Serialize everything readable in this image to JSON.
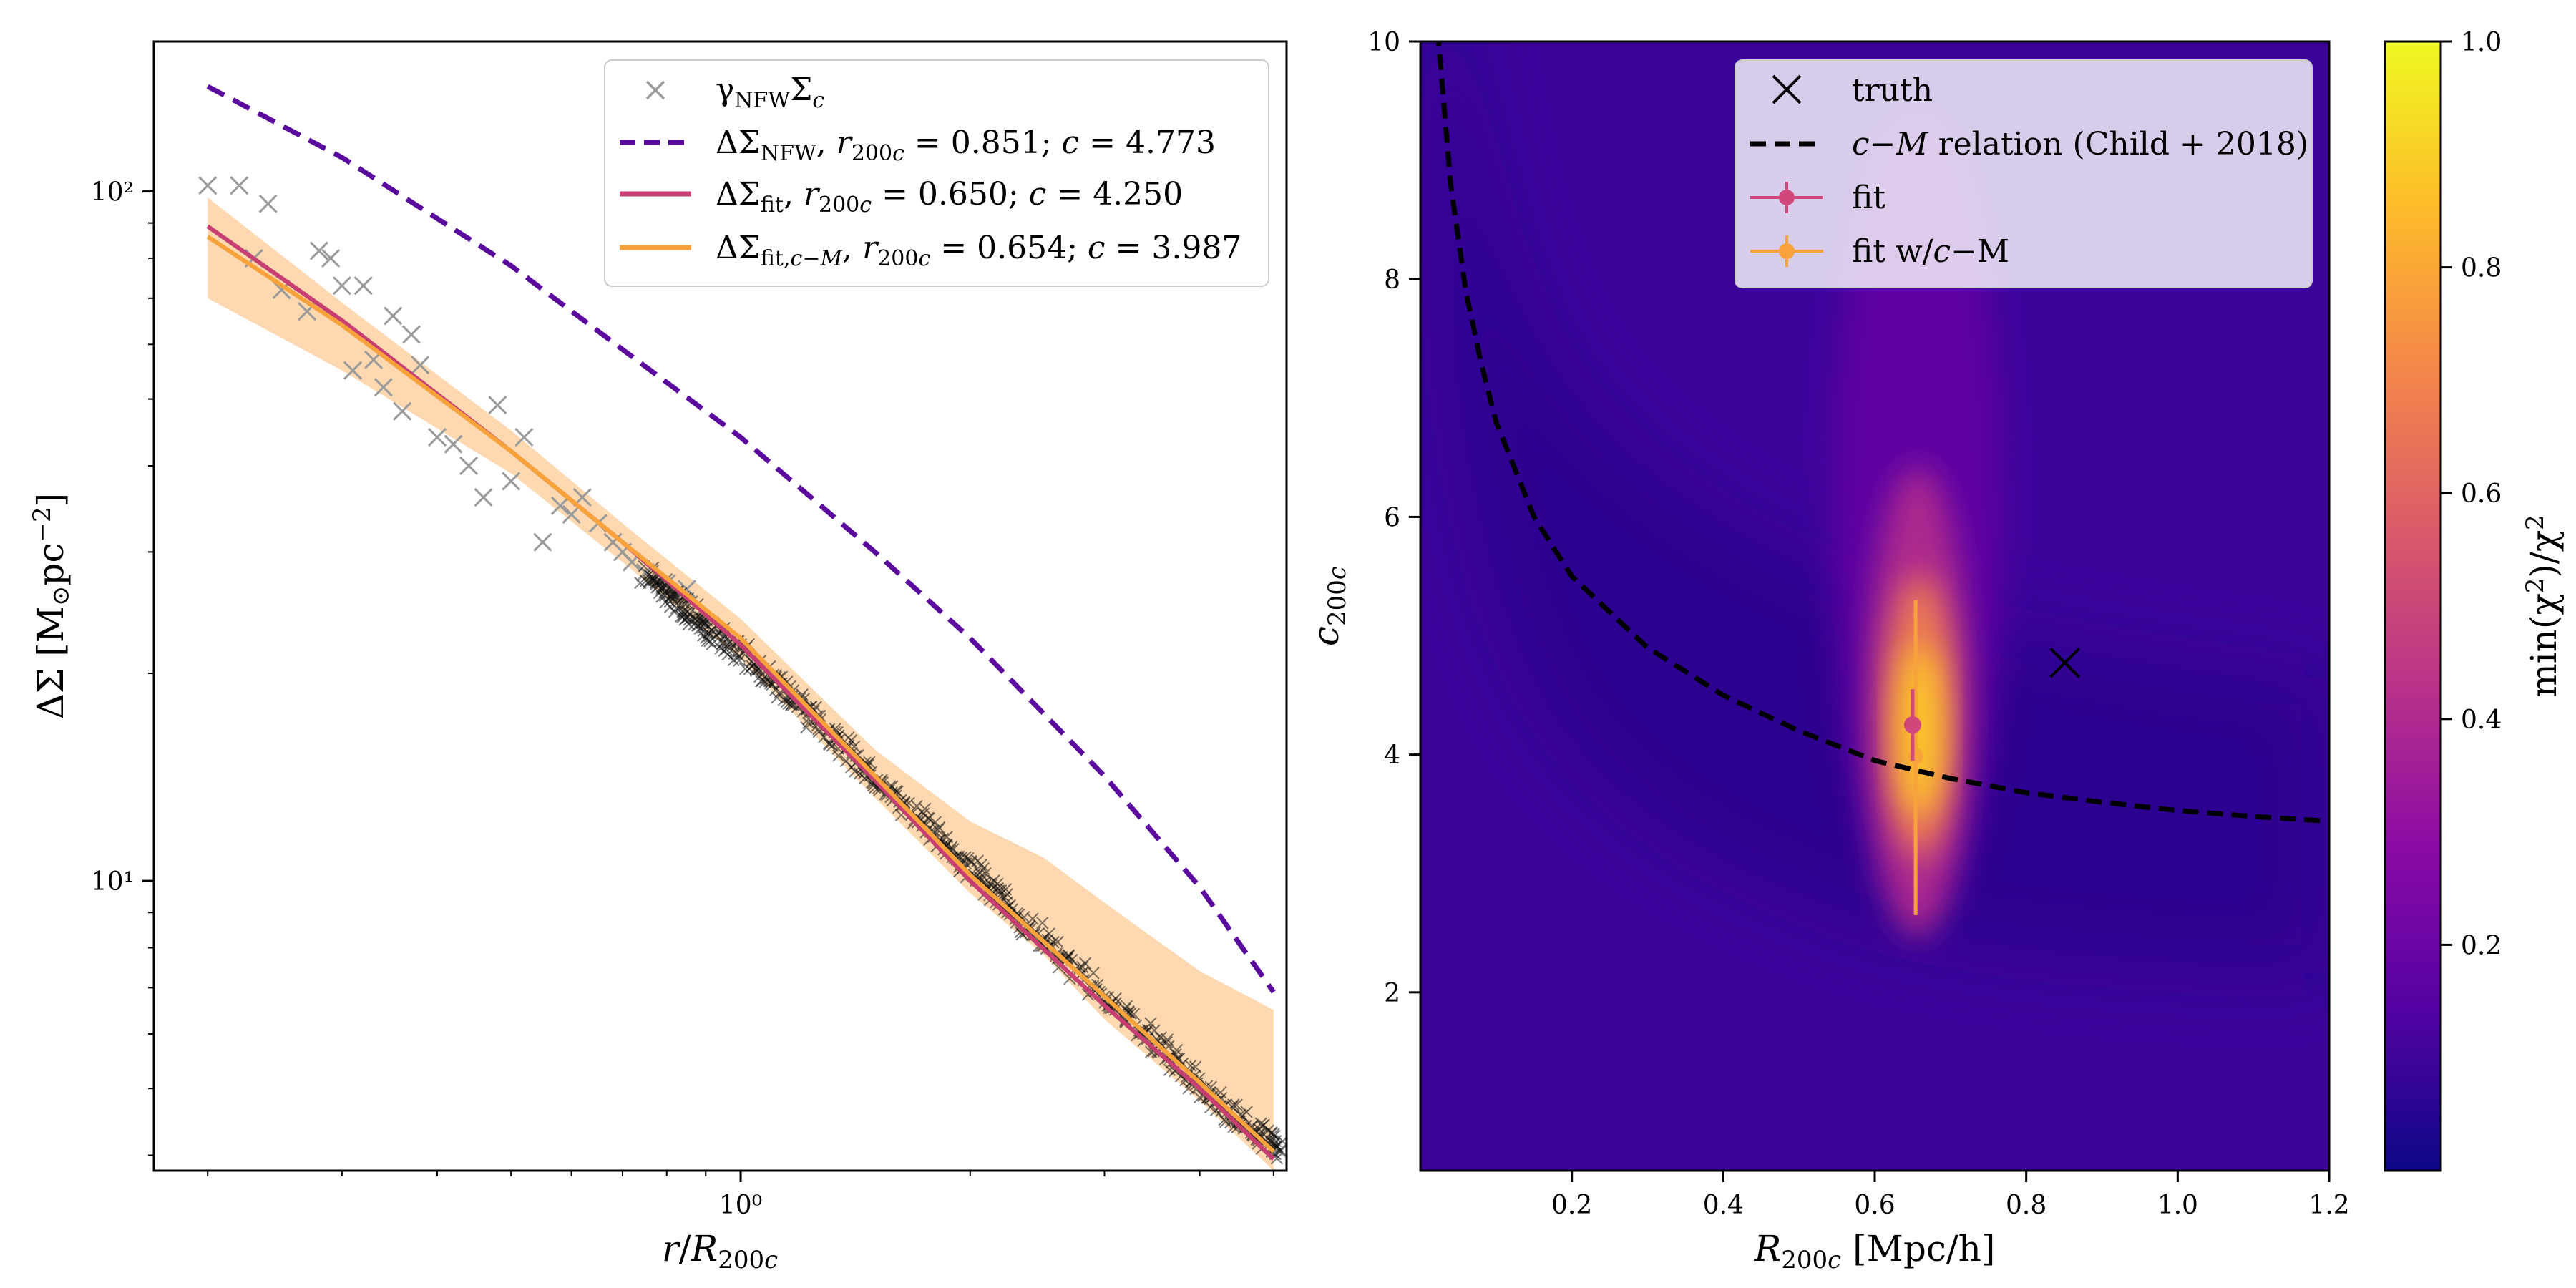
{
  "chart_data": [
    {
      "type": "line",
      "panel": "left",
      "xscale": "log",
      "yscale": "log",
      "xlabel": "r/R200c",
      "ylabel": "ΔΣ [M⊙pc⁻²]",
      "xlim": [
        0.17,
        5.2
      ],
      "ylim": [
        3.8,
        165
      ],
      "xticks": [
        {
          "value": 1,
          "label": "10⁰"
        }
      ],
      "yticks": [
        {
          "value": 10,
          "label": "10¹"
        },
        {
          "value": 100,
          "label": "10²"
        }
      ],
      "legend_position": "top-right",
      "legend": [
        {
          "label": "γNFW Σc",
          "color": "#9a9a9a",
          "marker": "x"
        },
        {
          "label": "ΔΣNFW, r200c = 0.851; c = 4.773",
          "color": "#5b0a9e",
          "style": "dashed"
        },
        {
          "label": "ΔΣfit, r200c = 0.650; c = 4.250",
          "color": "#c73e73",
          "style": "solid"
        },
        {
          "label": "ΔΣfit,c−M, r200c = 0.654; c = 3.987",
          "color": "#f7a23a",
          "style": "solid"
        }
      ],
      "series": [
        {
          "name": "ΔΣNFW, r200c = 0.851; c = 4.773",
          "color": "#5b0a9e",
          "x": [
            0.2,
            0.3,
            0.5,
            0.7,
            1.0,
            1.5,
            2.0,
            3.0,
            4.0,
            5.0
          ],
          "y": [
            142,
            112,
            78,
            59,
            44,
            30,
            22.5,
            14.2,
            9.8,
            6.9
          ]
        },
        {
          "name": "ΔΣfit, r200c = 0.650; c = 4.250",
          "color": "#c73e73",
          "x": [
            0.2,
            0.3,
            0.5,
            0.7,
            1.0,
            1.5,
            2.0,
            3.0,
            4.0,
            5.0
          ],
          "y": [
            89,
            65,
            42,
            31,
            22,
            14,
            10,
            6.6,
            5.0,
            3.95
          ]
        },
        {
          "name": "ΔΣfit,c−M, r200c = 0.654; c = 3.987",
          "color": "#f7a23a",
          "x": [
            0.2,
            0.3,
            0.5,
            0.7,
            1.0,
            1.5,
            2.0,
            3.0,
            4.0,
            5.0
          ],
          "y": [
            86,
            64,
            42,
            31,
            22.5,
            14.2,
            10.2,
            6.8,
            5.1,
            4.05
          ]
        }
      ],
      "band": {
        "color": "#fdd6ac",
        "x": [
          0.2,
          0.3,
          0.5,
          0.7,
          1.0,
          1.5,
          2.0,
          2.5,
          3.0,
          4.0,
          5.0
        ],
        "lower": [
          70,
          55,
          39,
          29,
          21,
          13.2,
          9.6,
          7.8,
          6.3,
          4.8,
          3.8
        ],
        "upper": [
          98,
          69,
          45,
          33,
          24,
          15.5,
          12.2,
          10.8,
          9.3,
          7.4,
          6.5
        ]
      },
      "scatter": {
        "name": "γNFW Σc",
        "color": "#9a9a9a",
        "x": [
          0.2,
          0.22,
          0.23,
          0.24,
          0.25,
          0.27,
          0.28,
          0.29,
          0.3,
          0.31,
          0.32,
          0.33,
          0.34,
          0.35,
          0.36,
          0.37,
          0.38,
          0.4,
          0.42,
          0.44,
          0.46,
          0.48,
          0.5,
          0.52,
          0.55,
          0.58,
          0.6,
          0.62,
          0.65,
          0.68,
          0.7,
          0.72,
          0.75,
          0.8,
          0.85,
          0.9,
          0.95
        ],
        "y": [
          102,
          102,
          80,
          96,
          72,
          67,
          82,
          80,
          73,
          55,
          73,
          57,
          52,
          66,
          48,
          62,
          56,
          44,
          43,
          40,
          36,
          49,
          38,
          44,
          31,
          35,
          34,
          36,
          33,
          31,
          30,
          29,
          28,
          27,
          26.5,
          23.5,
          22.5
        ]
      },
      "dense_scatter": {
        "color": "#111111",
        "x": [
          0.75,
          0.8,
          0.85,
          0.9,
          1.0,
          1.1,
          1.2,
          1.35,
          1.5,
          1.7,
          1.9,
          2.1,
          2.3,
          2.6,
          3.0,
          3.4,
          3.8,
          4.3,
          4.8,
          5.1
        ],
        "y": [
          28,
          26,
          25,
          23,
          21.5,
          19.5,
          17.8,
          15.8,
          14.0,
          12.4,
          11.0,
          9.9,
          8.9,
          7.9,
          6.8,
          6.0,
          5.3,
          4.7,
          4.3,
          4.05
        ]
      }
    },
    {
      "type": "heatmap",
      "panel": "right",
      "xlabel": "R200c [Mpc/h]",
      "ylabel": "c200c",
      "xlim": [
        0.0,
        1.2
      ],
      "ylim": [
        0.5,
        10
      ],
      "xticks": [
        0.2,
        0.4,
        0.6,
        0.8,
        1.0,
        1.2
      ],
      "yticks": [
        2,
        4,
        6,
        8,
        10
      ],
      "legend_position": "top-right",
      "legend": [
        {
          "label": "truth",
          "marker": "x",
          "color": "#000000"
        },
        {
          "label": "c−M relation (Child + 2018)",
          "style": "dashed",
          "color": "#000000"
        },
        {
          "label": "fit",
          "marker": "o",
          "color": "#d2477b"
        },
        {
          "label": "fit w/c−M",
          "marker": "o",
          "color": "#f7a23a"
        }
      ],
      "peak": {
        "x": 0.652,
        "y": 4.2
      },
      "cm_relation": {
        "x": [
          0.02,
          0.04,
          0.06,
          0.08,
          0.1,
          0.15,
          0.2,
          0.3,
          0.4,
          0.5,
          0.6,
          0.7,
          0.8,
          0.9,
          1.0,
          1.1,
          1.2
        ],
        "y": [
          10.3,
          8.8,
          7.9,
          7.3,
          6.8,
          6.0,
          5.5,
          4.9,
          4.5,
          4.2,
          3.95,
          3.8,
          3.68,
          3.6,
          3.53,
          3.48,
          3.44
        ]
      },
      "truth": {
        "x": 0.851,
        "y": 4.773
      },
      "fit": {
        "x": 0.65,
        "y": 4.25,
        "yerr_low": 3.95,
        "yerr_high": 4.55
      },
      "fit_cm": {
        "x": 0.654,
        "y": 3.987,
        "yerr_low": 2.65,
        "yerr_high": 5.3
      },
      "colorbar": {
        "label": "min(χ²)/χ²",
        "range": [
          0.0,
          1.0
        ],
        "ticks": [
          0.2,
          0.4,
          0.6,
          0.8,
          1.0
        ],
        "colors": [
          "#0d0887",
          "#5302a3",
          "#8b0aa5",
          "#b83289",
          "#db5c68",
          "#f48849",
          "#febd2a",
          "#f0f921"
        ]
      }
    }
  ]
}
